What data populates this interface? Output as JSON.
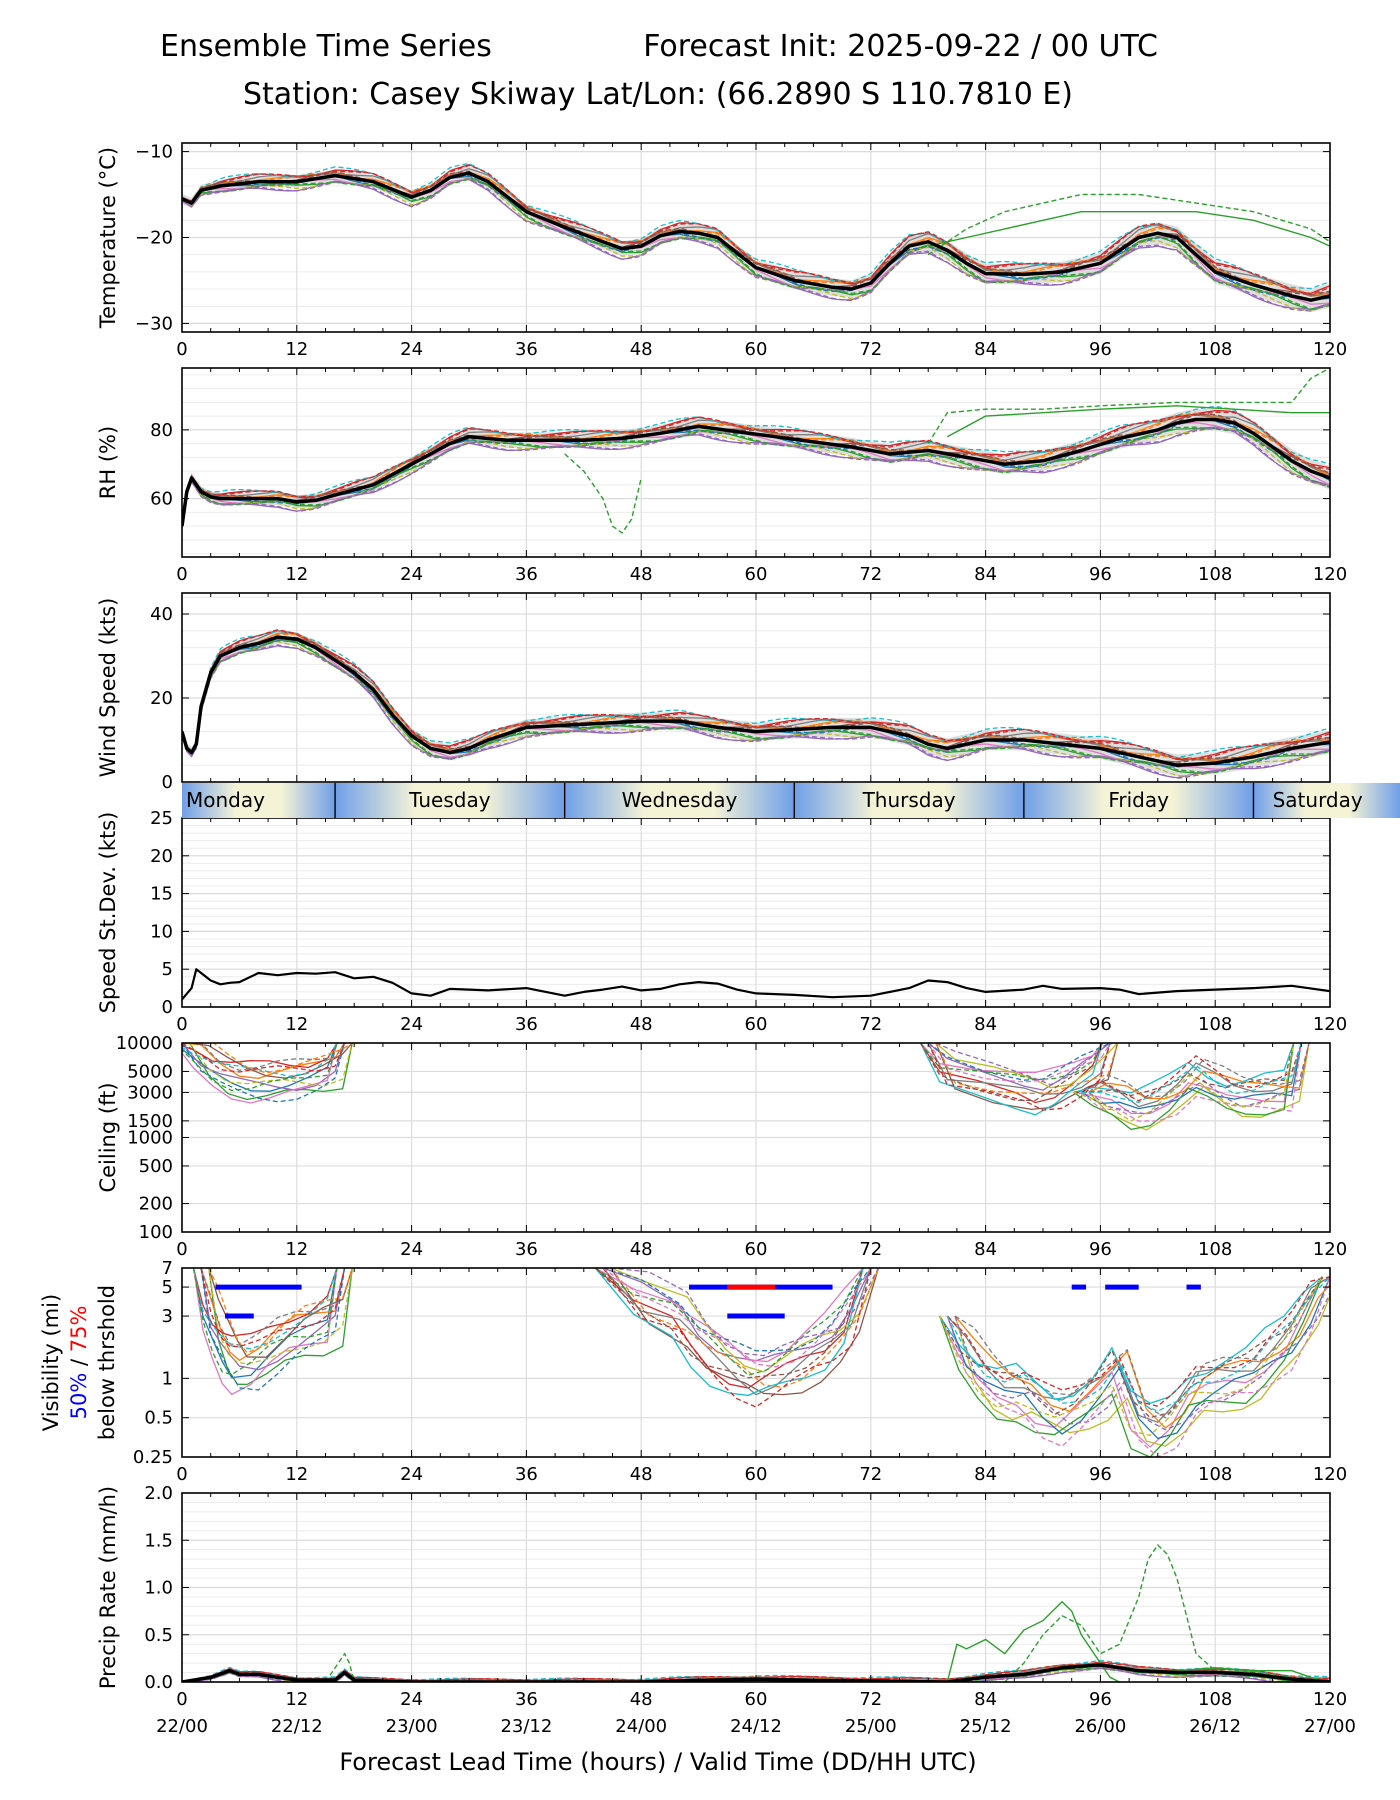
{
  "header": {
    "title_left": "Ensemble Time Series",
    "title_right": "Forecast Init: 2025-09-22 / 00 UTC",
    "station": "Station: Casey Skiway",
    "latlon": "Lat/Lon: (66.2890 S 110.7810 E)"
  },
  "xaxis": {
    "range": [
      0,
      120
    ],
    "ticks": [
      "0",
      "12",
      "24",
      "36",
      "48",
      "60",
      "72",
      "84",
      "96",
      "108",
      "120"
    ],
    "valid_times": [
      "22/00",
      "22/12",
      "23/00",
      "23/12",
      "24/00",
      "24/12",
      "25/00",
      "25/12",
      "26/00",
      "26/12",
      "27/00"
    ],
    "label": "Forecast Lead Time (hours) / Valid Time (DD/HH UTC)"
  },
  "days": [
    "Monday",
    "Tuesday",
    "Wednesday",
    "Thursday",
    "Friday",
    "Saturday"
  ],
  "visibility_legend": {
    "line1": "Visibility (mi)",
    "p50": "50%",
    "sep": " / ",
    "p75": "75%",
    "line3": "below thrshold",
    "color50": "#0000ff",
    "color75": "#ff0000"
  },
  "colors": {
    "mean": "#000000",
    "spread": "#d3d3d3",
    "members": [
      "#1f77b4",
      "#ff7f0e",
      "#2ca02c",
      "#d62728",
      "#9467bd",
      "#8c564b",
      "#e377c2",
      "#7f7f7f",
      "#bcbd22",
      "#17becf"
    ]
  },
  "chart_data": [
    {
      "type": "line",
      "id": "temperature",
      "ylabel": "Temperature (°C)",
      "ylim": [
        -31,
        -9
      ],
      "yticks": [
        -30,
        -20,
        -10
      ],
      "ytick_labels": [
        "−30",
        "−20",
        "−10"
      ],
      "mean": {
        "x": [
          0,
          1,
          2,
          4,
          8,
          12,
          16,
          20,
          24,
          26,
          28,
          30,
          32,
          36,
          40,
          44,
          46,
          48,
          50,
          52,
          54,
          56,
          58,
          60,
          64,
          68,
          70,
          72,
          74,
          76,
          78,
          80,
          82,
          84,
          88,
          92,
          96,
          98,
          100,
          102,
          104,
          106,
          108,
          112,
          116,
          118,
          120
        ],
        "y": [
          -15.5,
          -16,
          -14.5,
          -14,
          -13.5,
          -13.5,
          -12.8,
          -13.5,
          -15.3,
          -14.5,
          -13,
          -12.5,
          -13.5,
          -17,
          -18.8,
          -20.5,
          -21.3,
          -21,
          -19.8,
          -19.3,
          -19.5,
          -20,
          -21.8,
          -23.5,
          -25,
          -25.8,
          -26,
          -25.3,
          -23,
          -21,
          -20.5,
          -21.5,
          -23,
          -24.2,
          -24.3,
          -24,
          -23,
          -21.5,
          -20,
          -19.5,
          -20,
          -22,
          -24,
          -25.5,
          -26.8,
          -27.3,
          -26.8
        ]
      },
      "band_halfwidth": 1.0,
      "outliers": [
        {
          "x": [
            78,
            82,
            86,
            90,
            94,
            100,
            106,
            112,
            118,
            120
          ],
          "y": [
            -22,
            -19,
            -17,
            -16,
            -15,
            -15,
            -16,
            -17,
            -19,
            -20.5
          ],
          "dash": true
        },
        {
          "x": [
            78,
            82,
            86,
            90,
            94,
            100,
            106,
            112,
            118,
            120
          ],
          "y": [
            -21,
            -20,
            -19,
            -18,
            -17,
            -17,
            -17,
            -18,
            -20,
            -21
          ],
          "dash": false
        }
      ]
    },
    {
      "type": "line",
      "id": "rh",
      "ylabel": "RH (%)",
      "ylim": [
        43,
        98
      ],
      "yticks": [
        60,
        80
      ],
      "ytick_labels": [
        "60",
        "80"
      ],
      "mean": {
        "x": [
          0,
          0.5,
          1,
          2,
          3,
          4,
          6,
          8,
          10,
          12,
          14,
          16,
          20,
          24,
          28,
          30,
          34,
          38,
          42,
          46,
          50,
          54,
          58,
          62,
          66,
          70,
          74,
          78,
          82,
          86,
          90,
          94,
          98,
          102,
          104,
          106,
          108,
          110,
          112,
          114,
          116,
          118,
          120
        ],
        "y": [
          52,
          62,
          66,
          62,
          60.5,
          60,
          60,
          60,
          60,
          59,
          59.5,
          61,
          64,
          70,
          76,
          78,
          77,
          77,
          77,
          77.5,
          79,
          81,
          79.5,
          78,
          76.5,
          75,
          73,
          74,
          72,
          70,
          71,
          74,
          77.5,
          80,
          82,
          83,
          83,
          82,
          79,
          75,
          71,
          68,
          66
        ]
      },
      "band_halfwidth": 2.5,
      "outliers": [
        {
          "x": [
            40,
            42,
            44,
            45,
            46,
            47,
            48
          ],
          "y": [
            73,
            68,
            60,
            52,
            50,
            54,
            66
          ],
          "dash": true
        },
        {
          "x": [
            78,
            80,
            84,
            90,
            96,
            104,
            110,
            116,
            118,
            120
          ],
          "y": [
            76,
            85,
            86,
            86,
            87,
            88,
            88,
            88,
            95,
            98
          ],
          "dash": true
        },
        {
          "x": [
            80,
            84,
            90,
            96,
            104,
            110,
            116,
            120
          ],
          "y": [
            78,
            84,
            85,
            86,
            87,
            86,
            85,
            85
          ],
          "dash": false
        }
      ]
    },
    {
      "type": "line",
      "id": "wind",
      "ylabel": "Wind Speed (kts)",
      "ylim": [
        0,
        45
      ],
      "yticks": [
        0,
        20,
        40
      ],
      "ytick_labels": [
        "0",
        "20",
        "40"
      ],
      "mean": {
        "x": [
          0,
          0.5,
          1,
          1.5,
          2,
          3,
          4,
          6,
          8,
          10,
          12,
          14,
          16,
          18,
          20,
          22,
          24,
          26,
          28,
          30,
          32,
          36,
          40,
          44,
          48,
          52,
          56,
          60,
          64,
          68,
          72,
          76,
          78,
          80,
          84,
          88,
          92,
          96,
          100,
          104,
          108,
          112,
          116,
          120
        ],
        "y": [
          12,
          8,
          7,
          9,
          18,
          26,
          30,
          32,
          33,
          34.5,
          34,
          32,
          29,
          26,
          22,
          16,
          11,
          8,
          7,
          8,
          10,
          13,
          13.5,
          14,
          14.5,
          14.5,
          13,
          12,
          12.5,
          13,
          13,
          11,
          9,
          8,
          10,
          10,
          9,
          8,
          6,
          4,
          4.5,
          6,
          8,
          9.5
        ]
      },
      "band_halfwidth": 2.0,
      "outliers": []
    },
    {
      "type": "line",
      "id": "speed_stdev",
      "ylabel": "Speed St.Dev. (kts)",
      "ylim": [
        0,
        25
      ],
      "yticks": [
        0,
        5,
        10,
        15,
        20,
        25
      ],
      "ytick_labels": [
        "0",
        "5",
        "10",
        "15",
        "20",
        "25"
      ],
      "mean": {
        "x": [
          0,
          1,
          1.5,
          2,
          3,
          4,
          5,
          6,
          8,
          10,
          12,
          14,
          16,
          18,
          20,
          22,
          24,
          26,
          28,
          30,
          32,
          36,
          40,
          42,
          44,
          46,
          48,
          50,
          52,
          54,
          56,
          58,
          60,
          64,
          68,
          72,
          76,
          78,
          80,
          82,
          84,
          88,
          90,
          92,
          96,
          98,
          100,
          104,
          108,
          112,
          116,
          120
        ],
        "y": [
          1,
          2.5,
          5,
          4.5,
          3.5,
          3,
          3.2,
          3.3,
          4.5,
          4.2,
          4.5,
          4.4,
          4.6,
          3.8,
          4,
          3.2,
          1.8,
          1.5,
          2.4,
          2.3,
          2.2,
          2.5,
          1.5,
          2,
          2.3,
          2.7,
          2.2,
          2.4,
          3,
          3.3,
          3.1,
          2.3,
          1.8,
          1.6,
          1.3,
          1.5,
          2.5,
          3.5,
          3.3,
          2.5,
          2,
          2.3,
          2.8,
          2.4,
          2.5,
          2.3,
          1.7,
          2.1,
          2.3,
          2.5,
          2.8,
          2.1
        ]
      },
      "outliers": []
    },
    {
      "type": "line",
      "id": "ceiling",
      "ylabel": "Ceiling (ft)",
      "yscale": "log",
      "ylim": [
        100,
        10000
      ],
      "yticks": [
        100,
        200,
        500,
        1000,
        1500,
        3000,
        5000,
        10000
      ],
      "ytick_labels": [
        "100",
        "200",
        "500",
        "1000",
        "1500",
        "3000",
        "5000",
        "10000"
      ],
      "segments": [
        {
          "x": [
            0,
            2,
            4,
            6,
            8,
            10,
            12,
            14,
            16,
            17
          ],
          "y": [
            10000,
            7000,
            5000,
            4200,
            4000,
            4100,
            4200,
            4500,
            5500,
            10000
          ]
        },
        {
          "x": [
            78,
            80,
            84,
            88,
            90,
            92,
            94,
            96,
            97
          ],
          "y": [
            10000,
            5000,
            4000,
            3300,
            3000,
            3500,
            4500,
            6000,
            10000
          ]
        },
        {
          "x": [
            94,
            96,
            98,
            100,
            102,
            104,
            106,
            108,
            110,
            112,
            114,
            116,
            117
          ],
          "y": [
            3000,
            2800,
            2500,
            2000,
            2300,
            3000,
            4500,
            3500,
            2800,
            2800,
            3000,
            3200,
            10000
          ]
        }
      ]
    },
    {
      "type": "line",
      "id": "visibility",
      "ylabel": "Visibility (mi)",
      "yscale": "log",
      "ylim": [
        0.25,
        7
      ],
      "yticks": [
        0.25,
        0.5,
        1,
        3,
        5,
        7
      ],
      "ytick_labels": [
        "0.25",
        "0.5",
        "1",
        "3",
        "5",
        "7"
      ],
      "segments": [
        {
          "x": [
            2,
            3,
            4,
            5,
            6,
            8,
            10,
            12,
            14,
            16,
            17
          ],
          "y": [
            7,
            3,
            2,
            1.5,
            1.3,
            1.4,
            1.8,
            2.2,
            2.5,
            3,
            7
          ]
        },
        {
          "x": [
            44,
            48,
            52,
            54,
            56,
            58,
            60,
            62,
            64,
            66,
            68,
            70,
            72
          ],
          "y": [
            7,
            4,
            3,
            2,
            1.5,
            1.2,
            1,
            1.1,
            1.3,
            1.6,
            2,
            3,
            7
          ]
        },
        {
          "x": [
            80,
            82,
            84,
            86,
            88,
            90,
            92,
            94,
            96,
            98,
            100,
            102,
            104,
            106,
            108,
            110,
            112,
            114,
            116,
            118,
            120
          ],
          "y": [
            3,
            1.5,
            1,
            0.8,
            0.8,
            0.6,
            0.5,
            0.6,
            0.8,
            1.2,
            0.5,
            0.4,
            0.5,
            0.8,
            0.9,
            1,
            1.1,
            1.5,
            2,
            3.5,
            6
          ]
        }
      ],
      "threshold_bars": [
        {
          "x0": 3.5,
          "x1": 12.5,
          "y": 5,
          "pct": 50
        },
        {
          "x0": 4.5,
          "x1": 7.5,
          "y": 3,
          "pct": 50
        },
        {
          "x0": 53,
          "x1": 68,
          "y": 5,
          "pct": 50
        },
        {
          "x0": 57,
          "x1": 62,
          "y": 5,
          "pct": 75
        },
        {
          "x0": 57,
          "x1": 63,
          "y": 3,
          "pct": 50
        },
        {
          "x0": 93,
          "x1": 94.5,
          "y": 5,
          "pct": 50
        },
        {
          "x0": 96.5,
          "x1": 100,
          "y": 5,
          "pct": 50
        },
        {
          "x0": 105,
          "x1": 106.5,
          "y": 5,
          "pct": 50
        }
      ]
    },
    {
      "type": "line",
      "id": "precip",
      "ylabel": "Precip Rate (mm/h)",
      "ylim": [
        0,
        2.0
      ],
      "yticks": [
        0,
        0.5,
        1.0,
        1.5,
        2.0
      ],
      "ytick_labels": [
        "0.0",
        "0.5",
        "1.0",
        "1.5",
        "2.0"
      ],
      "mean": {
        "x": [
          0,
          3,
          5,
          6,
          8,
          10,
          12,
          16,
          17,
          18,
          24,
          48,
          55,
          60,
          65,
          80,
          84,
          88,
          92,
          96,
          100,
          104,
          108,
          112,
          116,
          120
        ],
        "y": [
          0,
          0.05,
          0.12,
          0.08,
          0.08,
          0.05,
          0.02,
          0.02,
          0.1,
          0.02,
          0,
          0,
          0.02,
          0.03,
          0.02,
          0,
          0.05,
          0.08,
          0.15,
          0.18,
          0.12,
          0.1,
          0.1,
          0.08,
          0.03,
          0
        ]
      },
      "outliers": [
        {
          "x": [
            80,
            81,
            82,
            84,
            86,
            88,
            90,
            92,
            93,
            94,
            96,
            97,
            98
          ],
          "y": [
            0,
            0.4,
            0.35,
            0.45,
            0.3,
            0.55,
            0.65,
            0.85,
            0.75,
            0.5,
            0.2,
            0.05,
            0
          ],
          "dash": false
        },
        {
          "x": [
            86,
            88,
            90,
            92,
            94,
            96,
            98,
            100,
            101,
            102,
            103,
            104,
            105,
            106,
            108,
            110
          ],
          "y": [
            0,
            0.2,
            0.5,
            0.7,
            0.6,
            0.3,
            0.4,
            0.9,
            1.3,
            1.45,
            1.35,
            1.1,
            0.7,
            0.3,
            0.12,
            0.1
          ],
          "dash": true
        },
        {
          "x": [
            15,
            16,
            17,
            17.5,
            18
          ],
          "y": [
            0,
            0.15,
            0.3,
            0.2,
            0
          ],
          "dash": true
        },
        {
          "x": [
            104,
            108,
            112,
            116,
            118,
            120
          ],
          "y": [
            0.12,
            0.15,
            0.12,
            0.12,
            0.05,
            0
          ],
          "dash": false
        },
        {
          "x": [
            100,
            104,
            108,
            112,
            116
          ],
          "y": [
            0.1,
            0.12,
            0.15,
            0.1,
            0.05
          ],
          "dash": true
        }
      ]
    }
  ]
}
